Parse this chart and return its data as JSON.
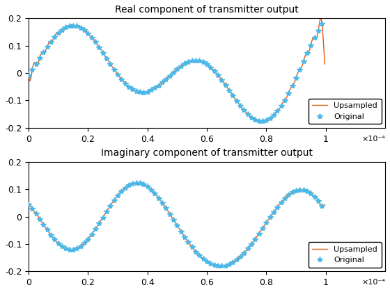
{
  "title1": "Real component of transmitter output",
  "title2": "Imaginary component of transmitter output",
  "legend_original": "Original",
  "legend_upsampled": "Upsampled",
  "xlim": [
    0,
    0.00012
  ],
  "ylim": [
    -0.2,
    0.2
  ],
  "xticks": [
    0,
    2e-05,
    4e-05,
    6e-05,
    8e-05,
    0.0001
  ],
  "xtick_labels": [
    "0",
    "0.2",
    "0.4",
    "0.6",
    "0.8",
    "1"
  ],
  "xexp_label": "×10⁻⁴",
  "yticks": [
    -0.2,
    -0.1,
    0,
    0.1,
    0.2
  ],
  "ytick_labels": [
    "-0.2",
    "-0.1",
    "0",
    "0.1",
    "0.2"
  ],
  "original_color": "#4CB8E8",
  "upsampled_color": "#E85A0E",
  "marker": "*",
  "marker_size": 6,
  "line_width": 1.0,
  "n_original": 80,
  "upsample_factor": 4,
  "seed_real": 42,
  "seed_imag": 123,
  "background_color": "#FFFFFF",
  "figsize": [
    5.6,
    4.2
  ],
  "dpi": 100
}
